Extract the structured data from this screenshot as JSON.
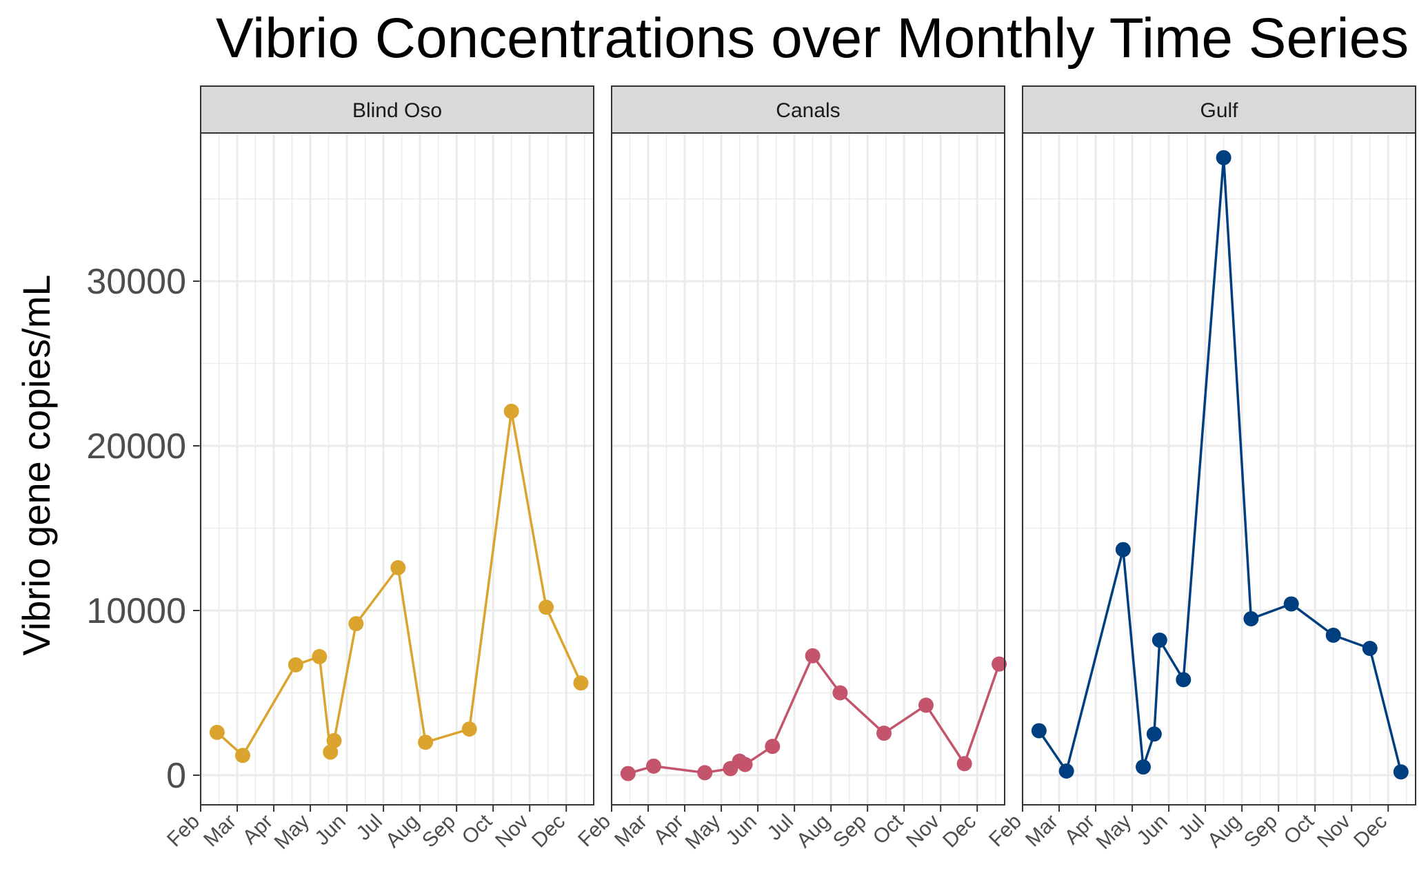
{
  "chart_data": {
    "type": "line",
    "title": "Vibrio Concentrations over Monthly Time Series",
    "xlabel": "",
    "ylabel": "Vibrio gene copies/mL",
    "ylim": [
      -1800,
      39000
    ],
    "y_ticks": [
      0,
      10000,
      20000,
      30000
    ],
    "x_tick_labels": [
      "Feb",
      "Mar",
      "Apr",
      "May",
      "Jun",
      "Jul",
      "Aug",
      "Sep",
      "Oct",
      "Nov",
      "Dec"
    ],
    "x_units": "month index (Feb = 2, fractional = day within month)",
    "xlim": [
      2,
      12.75
    ],
    "grid": true,
    "legend": "none",
    "panels": [
      {
        "name": "Blind Oso",
        "color": "#DAA42E",
        "x": [
          2.45,
          3.15,
          4.6,
          5.25,
          5.55,
          5.65,
          6.25,
          7.4,
          8.15,
          9.35,
          10.5,
          11.45,
          12.4
        ],
        "values": [
          2600,
          1200,
          6700,
          7200,
          1400,
          2100,
          9200,
          12600,
          2000,
          2800,
          22100,
          10200,
          5600
        ]
      },
      {
        "name": "Canals",
        "color": "#C4546B",
        "x": [
          2.45,
          3.15,
          4.55,
          5.25,
          5.5,
          5.65,
          6.4,
          7.5,
          8.25,
          9.45,
          10.6,
          11.65,
          12.6
        ],
        "values": [
          100,
          550,
          150,
          400,
          850,
          650,
          1750,
          7250,
          5000,
          2550,
          4250,
          700,
          6750
        ]
      },
      {
        "name": "Gulf",
        "color": "#003F7F",
        "x": [
          2.45,
          3.2,
          4.75,
          5.3,
          5.6,
          5.75,
          6.4,
          7.5,
          8.25,
          9.35,
          10.5,
          11.5,
          12.35
        ],
        "values": [
          2700,
          250,
          13700,
          500,
          2500,
          8200,
          5800,
          37500,
          9500,
          10400,
          8500,
          7700,
          200
        ]
      }
    ]
  }
}
